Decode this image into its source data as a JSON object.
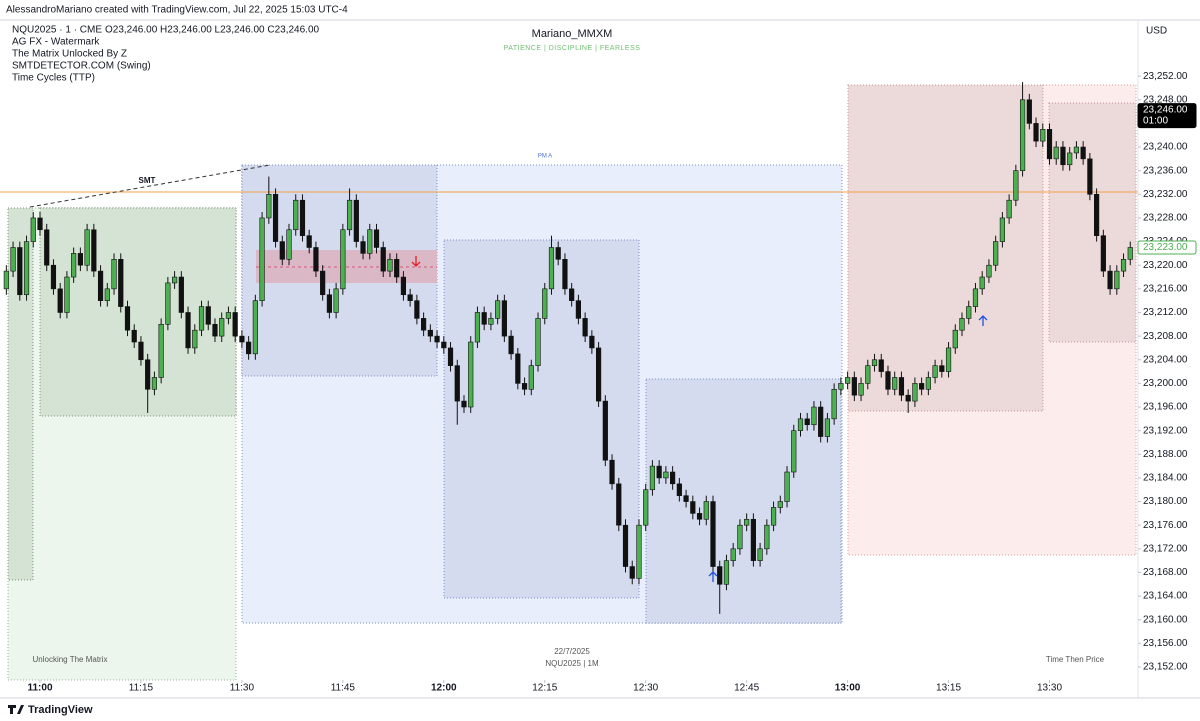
{
  "chart_data": {
    "type": "candlestick",
    "creator": "AlessandroMariano created with TradingView.com, Jul 22, 2025 15:03 UTC-4",
    "symbol": "NQU2025 · 1 · CME",
    "ohlc_readout": "O23,246.00  H23,246.00  L23,246.00  C23,246.00",
    "indicators": [
      "AG FX - Watermark",
      "The Matrix Unlocked By Z",
      "SMTDETECTOR.COM (Swing)",
      "Time Cycles (TTP)"
    ],
    "title": "Mariano_MMXM",
    "subtitle": "PATIENCE  |  DISCIPLINE  |  FEARLESS",
    "currency": "USD",
    "annotations": {
      "smt": "SMT",
      "pm": "PM A",
      "left_zone": "Unlocking The Matrix",
      "right_zone": "Time Then Price",
      "date": "22/7/2025",
      "instrument": "NQU2025 | 1M"
    },
    "footer": "TradingView",
    "up_color": "#4caf50",
    "down_color": "#111111",
    "grid": false,
    "x": [
      "10:55",
      "10:56",
      "10:57",
      "10:58",
      "10:59",
      "11:00",
      "11:01",
      "11:02",
      "11:03",
      "11:04",
      "11:05",
      "11:06",
      "11:07",
      "11:08",
      "11:09",
      "11:10",
      "11:11",
      "11:12",
      "11:13",
      "11:14",
      "11:15",
      "11:16",
      "11:17",
      "11:18",
      "11:19",
      "11:20",
      "11:21",
      "11:22",
      "11:23",
      "11:24",
      "11:25",
      "11:26",
      "11:27",
      "11:28",
      "11:29",
      "11:30",
      "11:31",
      "11:32",
      "11:33",
      "11:34",
      "11:35",
      "11:36",
      "11:37",
      "11:38",
      "11:39",
      "11:40",
      "11:41",
      "11:42",
      "11:43",
      "11:44",
      "11:45",
      "11:46",
      "11:47",
      "11:48",
      "11:49",
      "11:50",
      "11:51",
      "11:52",
      "11:53",
      "11:54",
      "11:55",
      "11:56",
      "11:57",
      "11:58",
      "11:59",
      "12:00",
      "12:01",
      "12:02",
      "12:03",
      "12:04",
      "12:05",
      "12:06",
      "12:07",
      "12:08",
      "12:09",
      "12:10",
      "12:11",
      "12:12",
      "12:13",
      "12:14",
      "12:15",
      "12:16",
      "12:17",
      "12:18",
      "12:19",
      "12:20",
      "12:21",
      "12:22",
      "12:23",
      "12:24",
      "12:25",
      "12:26",
      "12:27",
      "12:28",
      "12:29",
      "12:30",
      "12:31",
      "12:32",
      "12:33",
      "12:34",
      "12:35",
      "12:36",
      "12:37",
      "12:38",
      "12:39",
      "12:40",
      "12:41",
      "12:42",
      "12:43",
      "12:44",
      "12:45",
      "12:46",
      "12:47",
      "12:48",
      "12:49",
      "12:50",
      "12:51",
      "12:52",
      "12:53",
      "12:54",
      "12:55",
      "12:56",
      "12:57",
      "12:58",
      "12:59",
      "13:00",
      "13:01",
      "13:02",
      "13:03",
      "13:04",
      "13:05",
      "13:06",
      "13:07",
      "13:08",
      "13:09",
      "13:10",
      "13:11",
      "13:12",
      "13:13",
      "13:14",
      "13:15",
      "13:16",
      "13:17",
      "13:18",
      "13:19",
      "13:20",
      "13:21",
      "13:22",
      "13:23",
      "13:24",
      "13:25",
      "13:26",
      "13:27",
      "13:28",
      "13:29",
      "13:30",
      "13:31",
      "13:32",
      "13:33",
      "13:34",
      "13:35",
      "13:36",
      "13:37",
      "13:38",
      "13:39",
      "13:40",
      "13:41",
      "13:42"
    ],
    "open": [
      23216,
      23219,
      23223,
      23215,
      23224,
      23228,
      23226,
      23220,
      23216,
      23212,
      23218,
      23222,
      23220,
      23226,
      23219,
      23214,
      23216,
      23221,
      23213,
      23209,
      23207,
      23204,
      23199,
      23201,
      23210,
      23217,
      23218,
      23212,
      23206,
      23209,
      23213,
      23210,
      23208,
      23211,
      23212,
      23208,
      23207,
      23205,
      23214,
      23228,
      23232,
      23224,
      23221,
      23226,
      23231,
      23225,
      23223,
      23219,
      23215,
      23212,
      23216,
      23226,
      23231,
      23224,
      23222,
      23226,
      23223,
      23219,
      23221,
      23218,
      23215,
      23214,
      23211,
      23209,
      23208,
      23207,
      23206,
      23203,
      23197,
      23196,
      23207,
      23212,
      23210,
      23211,
      23214,
      23208,
      23205,
      23200,
      23199,
      23203,
      23211,
      23216,
      23223,
      23221,
      23216,
      23214,
      23211,
      23208,
      23206,
      23197,
      23187,
      23183,
      23176,
      23169,
      23167,
      23176,
      23182,
      23186,
      23184,
      23185,
      23183,
      23181,
      23180,
      23178,
      23177,
      23180,
      23169,
      23166,
      23170,
      23172,
      23176,
      23177,
      23170,
      23172,
      23176,
      23179,
      23180,
      23185,
      23192,
      23194,
      23193,
      23196,
      23191,
      23194,
      23199,
      23200,
      23201,
      23198,
      23200,
      23203,
      23204,
      23202,
      23199,
      23201,
      23198,
      23197,
      23200,
      23199,
      23201,
      23203,
      23202,
      23206,
      23209,
      23211,
      23213,
      23216,
      23218,
      23220,
      23224,
      23228,
      23231,
      23236,
      23248,
      23244,
      23241,
      23243,
      23238,
      23240,
      23237,
      23239,
      23240,
      23238,
      23232,
      23225,
      23219,
      23216,
      23219,
      23221
    ],
    "high": [
      23220,
      23224,
      23224,
      23225,
      23229,
      23229,
      23227,
      23221,
      23217,
      23219,
      23223,
      23223,
      23227,
      23227,
      23220,
      23217,
      23222,
      23222,
      23214,
      23210,
      23208,
      23205,
      23202,
      23211,
      23218,
      23219,
      23219,
      23213,
      23210,
      23214,
      23214,
      23211,
      23212,
      23213,
      23213,
      23209,
      23208,
      23215,
      23229,
      23235,
      23233,
      23225,
      23227,
      23232,
      23232,
      23226,
      23224,
      23220,
      23216,
      23217,
      23227,
      23233,
      23232,
      23225,
      23227,
      23227,
      23224,
      23222,
      23222,
      23219,
      23216,
      23215,
      23212,
      23210,
      23209,
      23208,
      23207,
      23204,
      23198,
      23208,
      23213,
      23213,
      23212,
      23215,
      23215,
      23209,
      23206,
      23201,
      23204,
      23212,
      23217,
      23225,
      23224,
      23222,
      23217,
      23215,
      23212,
      23209,
      23207,
      23198,
      23188,
      23184,
      23177,
      23170,
      23177,
      23183,
      23187,
      23187,
      23186,
      23186,
      23184,
      23182,
      23181,
      23179,
      23181,
      23181,
      23170,
      23171,
      23173,
      23177,
      23178,
      23178,
      23173,
      23177,
      23180,
      23181,
      23186,
      23193,
      23195,
      23195,
      23197,
      23197,
      23195,
      23200,
      23201,
      23202,
      23202,
      23201,
      23204,
      23205,
      23205,
      23203,
      23202,
      23202,
      23199,
      23201,
      23201,
      23202,
      23204,
      23204,
      23207,
      23210,
      23212,
      23214,
      23217,
      23219,
      23221,
      23225,
      23229,
      23232,
      23237,
      23251,
      23249,
      23245,
      23244,
      23244,
      23241,
      23241,
      23240,
      23241,
      23241,
      23239,
      23233,
      23226,
      23220,
      23220,
      23222,
      23224
    ],
    "low": [
      23215,
      23218,
      23214,
      23214,
      23223,
      23225,
      23219,
      23215,
      23211,
      23211,
      23217,
      23219,
      23219,
      23218,
      23213,
      23213,
      23215,
      23212,
      23208,
      23206,
      23203,
      23195,
      23198,
      23200,
      23209,
      23216,
      23211,
      23205,
      23205,
      23208,
      23209,
      23207,
      23207,
      23210,
      23207,
      23206,
      23204,
      23204,
      23213,
      23227,
      23223,
      23220,
      23220,
      23225,
      23224,
      23222,
      23218,
      23214,
      23211,
      23211,
      23215,
      23225,
      23223,
      23221,
      23221,
      23222,
      23218,
      23218,
      23217,
      23214,
      23213,
      23210,
      23208,
      23207,
      23206,
      23205,
      23202,
      23193,
      23195,
      23195,
      23206,
      23209,
      23209,
      23210,
      23207,
      23204,
      23199,
      23198,
      23198,
      23202,
      23210,
      23215,
      23220,
      23215,
      23213,
      23210,
      23207,
      23205,
      23196,
      23186,
      23182,
      23175,
      23168,
      23166,
      23166,
      23175,
      23181,
      23183,
      23183,
      23182,
      23180,
      23179,
      23177,
      23176,
      23176,
      23168,
      23161,
      23165,
      23169,
      23171,
      23175,
      23169,
      23169,
      23171,
      23175,
      23178,
      23179,
      23184,
      23191,
      23192,
      23192,
      23190,
      23190,
      23193,
      23198,
      23199,
      23197,
      23197,
      23199,
      23202,
      23201,
      23198,
      23198,
      23197,
      23195,
      23196,
      23198,
      23198,
      23200,
      23201,
      23201,
      23205,
      23208,
      23210,
      23212,
      23215,
      23217,
      23219,
      23223,
      23227,
      23230,
      23235,
      23243,
      23240,
      23240,
      23237,
      23237,
      23236,
      23236,
      23238,
      23237,
      23231,
      23224,
      23218,
      23215,
      23215,
      23218,
      23220
    ],
    "close": [
      23219,
      23223,
      23215,
      23224,
      23228,
      23226,
      23220,
      23216,
      23212,
      23218,
      23222,
      23220,
      23226,
      23219,
      23214,
      23216,
      23221,
      23213,
      23209,
      23207,
      23204,
      23199,
      23201,
      23210,
      23217,
      23218,
      23212,
      23206,
      23209,
      23213,
      23210,
      23208,
      23211,
      23212,
      23208,
      23207,
      23205,
      23214,
      23228,
      23232,
      23224,
      23221,
      23226,
      23231,
      23225,
      23223,
      23219,
      23215,
      23212,
      23216,
      23226,
      23231,
      23224,
      23222,
      23226,
      23223,
      23219,
      23221,
      23218,
      23215,
      23214,
      23211,
      23209,
      23208,
      23207,
      23206,
      23203,
      23197,
      23196,
      23207,
      23212,
      23210,
      23211,
      23214,
      23208,
      23205,
      23200,
      23199,
      23203,
      23211,
      23216,
      23223,
      23221,
      23216,
      23214,
      23211,
      23208,
      23206,
      23197,
      23187,
      23183,
      23176,
      23169,
      23167,
      23176,
      23182,
      23186,
      23184,
      23185,
      23183,
      23181,
      23180,
      23178,
      23177,
      23180,
      23169,
      23166,
      23170,
      23172,
      23176,
      23177,
      23170,
      23172,
      23176,
      23179,
      23180,
      23185,
      23192,
      23194,
      23193,
      23196,
      23191,
      23194,
      23199,
      23200,
      23201,
      23198,
      23200,
      23203,
      23204,
      23202,
      23199,
      23201,
      23198,
      23197,
      23200,
      23199,
      23201,
      23203,
      23202,
      23206,
      23209,
      23211,
      23213,
      23216,
      23218,
      23220,
      23224,
      23228,
      23231,
      23236,
      23248,
      23244,
      23241,
      23243,
      23238,
      23240,
      23237,
      23239,
      23240,
      23238,
      23232,
      23225,
      23219,
      23216,
      23219,
      23221,
      23223
    ],
    "xticks": [
      "11:00",
      "11:15",
      "11:30",
      "11:45",
      "12:00",
      "12:15",
      "12:30",
      "12:45",
      "13:00",
      "13:15",
      "13:30"
    ],
    "ylim": [
      23149.8,
      23261.5
    ],
    "yticks": [
      {
        "value": 23152,
        "label": "23,152.00"
      },
      {
        "value": 23156,
        "label": "23,156.00"
      },
      {
        "value": 23160,
        "label": "23,160.00"
      },
      {
        "value": 23164,
        "label": "23,164.00"
      },
      {
        "value": 23168,
        "label": "23,168.00"
      },
      {
        "value": 23172,
        "label": "23,172.00"
      },
      {
        "value": 23176,
        "label": "23,176.00"
      },
      {
        "value": 23180,
        "label": "23,180.00"
      },
      {
        "value": 23184,
        "label": "23,184.00"
      },
      {
        "value": 23188,
        "label": "23,188.00"
      },
      {
        "value": 23192,
        "label": "23,192.00"
      },
      {
        "value": 23196,
        "label": "23,196.00"
      },
      {
        "value": 23200,
        "label": "23,200.00"
      },
      {
        "value": 23204,
        "label": "23,204.00"
      },
      {
        "value": 23208,
        "label": "23,208.00"
      },
      {
        "value": 23212,
        "label": "23,212.00"
      },
      {
        "value": 23216,
        "label": "23,216.00"
      },
      {
        "value": 23220,
        "label": "23,220.00"
      },
      {
        "value": 23224,
        "label": "23,224.00"
      },
      {
        "value": 23228,
        "label": "23,228.00"
      },
      {
        "value": 23232,
        "label": "23,232.00"
      },
      {
        "value": 23236,
        "label": "23,236.00"
      },
      {
        "value": 23240,
        "label": "23,240.00"
      },
      {
        "value": 23244,
        "label": "23,244.00"
      },
      {
        "value": 23248,
        "label": "23,248.00"
      },
      {
        "value": 23252,
        "label": "23,252.00"
      }
    ],
    "price_labels": [
      {
        "value": 23246,
        "label": "23,246.00",
        "countdown": "01:00",
        "color": "#000000"
      },
      {
        "value": 23223,
        "label": "23,223.00",
        "color": "#4caf50"
      }
    ]
  }
}
